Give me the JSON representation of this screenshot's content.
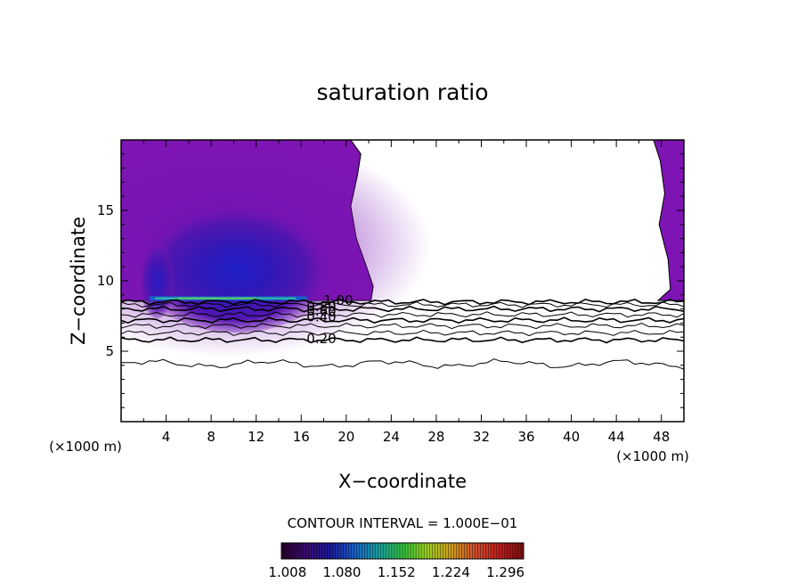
{
  "chart_data": {
    "type": "contour",
    "title": "saturation ratio",
    "xlabel": "X−coordinate",
    "ylabel": "Z−coordinate",
    "x_unit": "(×1000 m)",
    "z_unit": "(×1000 m)",
    "xlim": [
      0,
      50
    ],
    "ylim": [
      0,
      20
    ],
    "x_ticks": [
      4,
      8,
      12,
      16,
      20,
      24,
      28,
      32,
      36,
      40,
      44,
      48
    ],
    "y_ticks": [
      5,
      10,
      15
    ],
    "contour_interval_text": "CONTOUR INTERVAL = 1.000E−01",
    "contour_levels_labeled": [
      "1.00",
      "0.80",
      "0.60",
      "0.40",
      "0.20"
    ],
    "contour_line_heights_km": [
      8.5,
      8.3,
      8.0,
      7.6,
      7.2,
      6.8,
      6.3,
      5.8,
      4.1
    ],
    "colorbar": {
      "range": [
        1.0,
        1.32
      ],
      "tick_labels": [
        "1.008",
        "1.080",
        "1.152",
        "1.224",
        "1.296"
      ],
      "colors": [
        "#2a0030",
        "#3a0a70",
        "#1818a0",
        "#1a60c8",
        "#1aa0a0",
        "#30c040",
        "#9ad020",
        "#d0a018",
        "#d05030",
        "#c02020",
        "#801010"
      ]
    },
    "filled_regions": [
      {
        "x_range": [
          0,
          21
        ],
        "z_range": [
          8.6,
          20
        ],
        "base_color": "#7e14b4"
      },
      {
        "x_range": [
          47.5,
          50
        ],
        "z_range": [
          8.6,
          20
        ],
        "base_color": "#7e14b4"
      }
    ]
  }
}
